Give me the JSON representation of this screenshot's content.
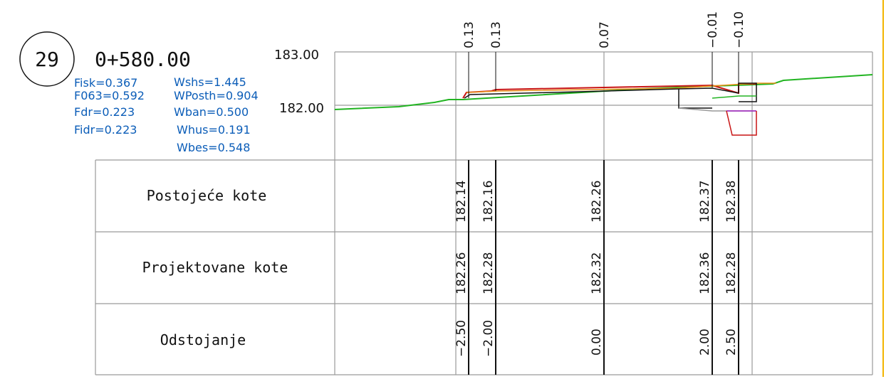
{
  "section": {
    "number": "29",
    "station": "0+580.00"
  },
  "coefficients": [
    "Fisk=0.367",
    "F063=0.592",
    "Fdr=0.223",
    "Fidr=0.223",
    "Wshs=1.445",
    "WPosth=0.904",
    "Wban=0.500",
    "Whus=0.191",
    "Wbes=0.548"
  ],
  "elevation_labels": {
    "top": "183.00",
    "mid": "182.00"
  },
  "top_diffs": [
    "0.13",
    "0.13",
    "0.07",
    "−0.01",
    "−0.10"
  ],
  "table": {
    "rows": [
      {
        "label": "Postojeće kote",
        "values": [
          "182.14",
          "182.16",
          "182.26",
          "182.37",
          "182.38"
        ]
      },
      {
        "label": "Projektovane kote",
        "values": [
          "182.26",
          "182.28",
          "182.32",
          "182.36",
          "182.28"
        ]
      },
      {
        "label": "Odstojanje",
        "values": [
          "−2.50",
          "−2.00",
          "0.00",
          "2.00",
          "2.50"
        ]
      }
    ]
  },
  "colors": {
    "terrain": "#22b422",
    "design": "#c81414",
    "layer": "#e8901a",
    "structure": "#111111",
    "purple": "#a020c0",
    "grid": "#9a9a9a",
    "blue_text": "#0b5db8",
    "frame_accent": "#f2b400"
  }
}
